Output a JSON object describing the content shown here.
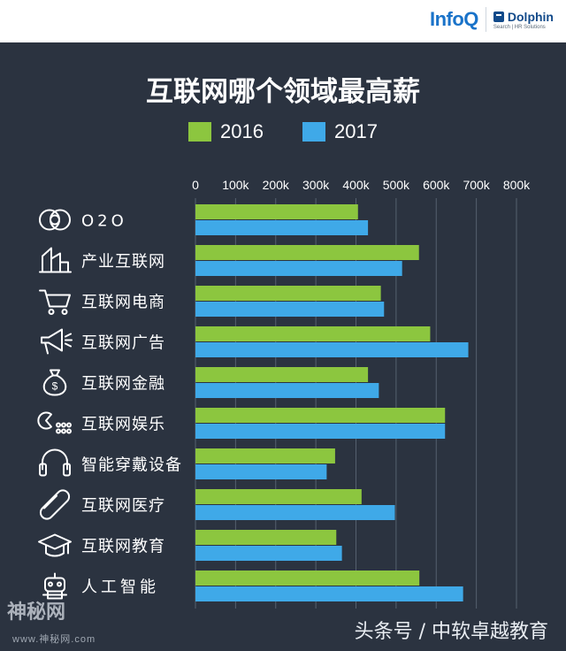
{
  "brand": {
    "infoq": "InfoQ",
    "dolphin": "Dolphin",
    "dolphin_sub": "Search | HR Solutions"
  },
  "watermarks": {
    "left": "神秘网",
    "left_sub": "www.神秘网.com",
    "right": "头条号 / 中软卓越教育"
  },
  "colors": {
    "background": "#2b3340",
    "series_2016": "#8cc63f",
    "series_2017": "#3fa9e8",
    "grid": "#55606e",
    "text": "#ffffff"
  },
  "chart_data": {
    "type": "bar",
    "orientation": "horizontal",
    "title": "互联网哪个领域最高薪",
    "categories": [
      "O2O",
      "产业互联网",
      "互联网电商",
      "互联网广告",
      "互联网金融",
      "互联网娱乐",
      "智能穿戴设备",
      "互联网医疗",
      "互联网教育",
      "人工智能"
    ],
    "category_icons": [
      "o2o-icon",
      "building-icon",
      "shopping-cart-icon",
      "megaphone-icon",
      "money-bag-icon",
      "game-icon",
      "headphones-icon",
      "pill-icon",
      "graduation-cap-icon",
      "robot-icon"
    ],
    "series": [
      {
        "name": "2016",
        "values": [
          405,
          557,
          462,
          585,
          430,
          622,
          348,
          414,
          351,
          558
        ]
      },
      {
        "name": "2017",
        "values": [
          430,
          515,
          470,
          680,
          457,
          622,
          327,
          497,
          365,
          667
        ]
      }
    ],
    "x_ticks": [
      "0",
      "100k",
      "200k",
      "300k",
      "400k",
      "500k",
      "600k",
      "700k",
      "800k"
    ],
    "xlim": [
      0,
      800
    ],
    "grid": true,
    "legend_position": "top"
  }
}
